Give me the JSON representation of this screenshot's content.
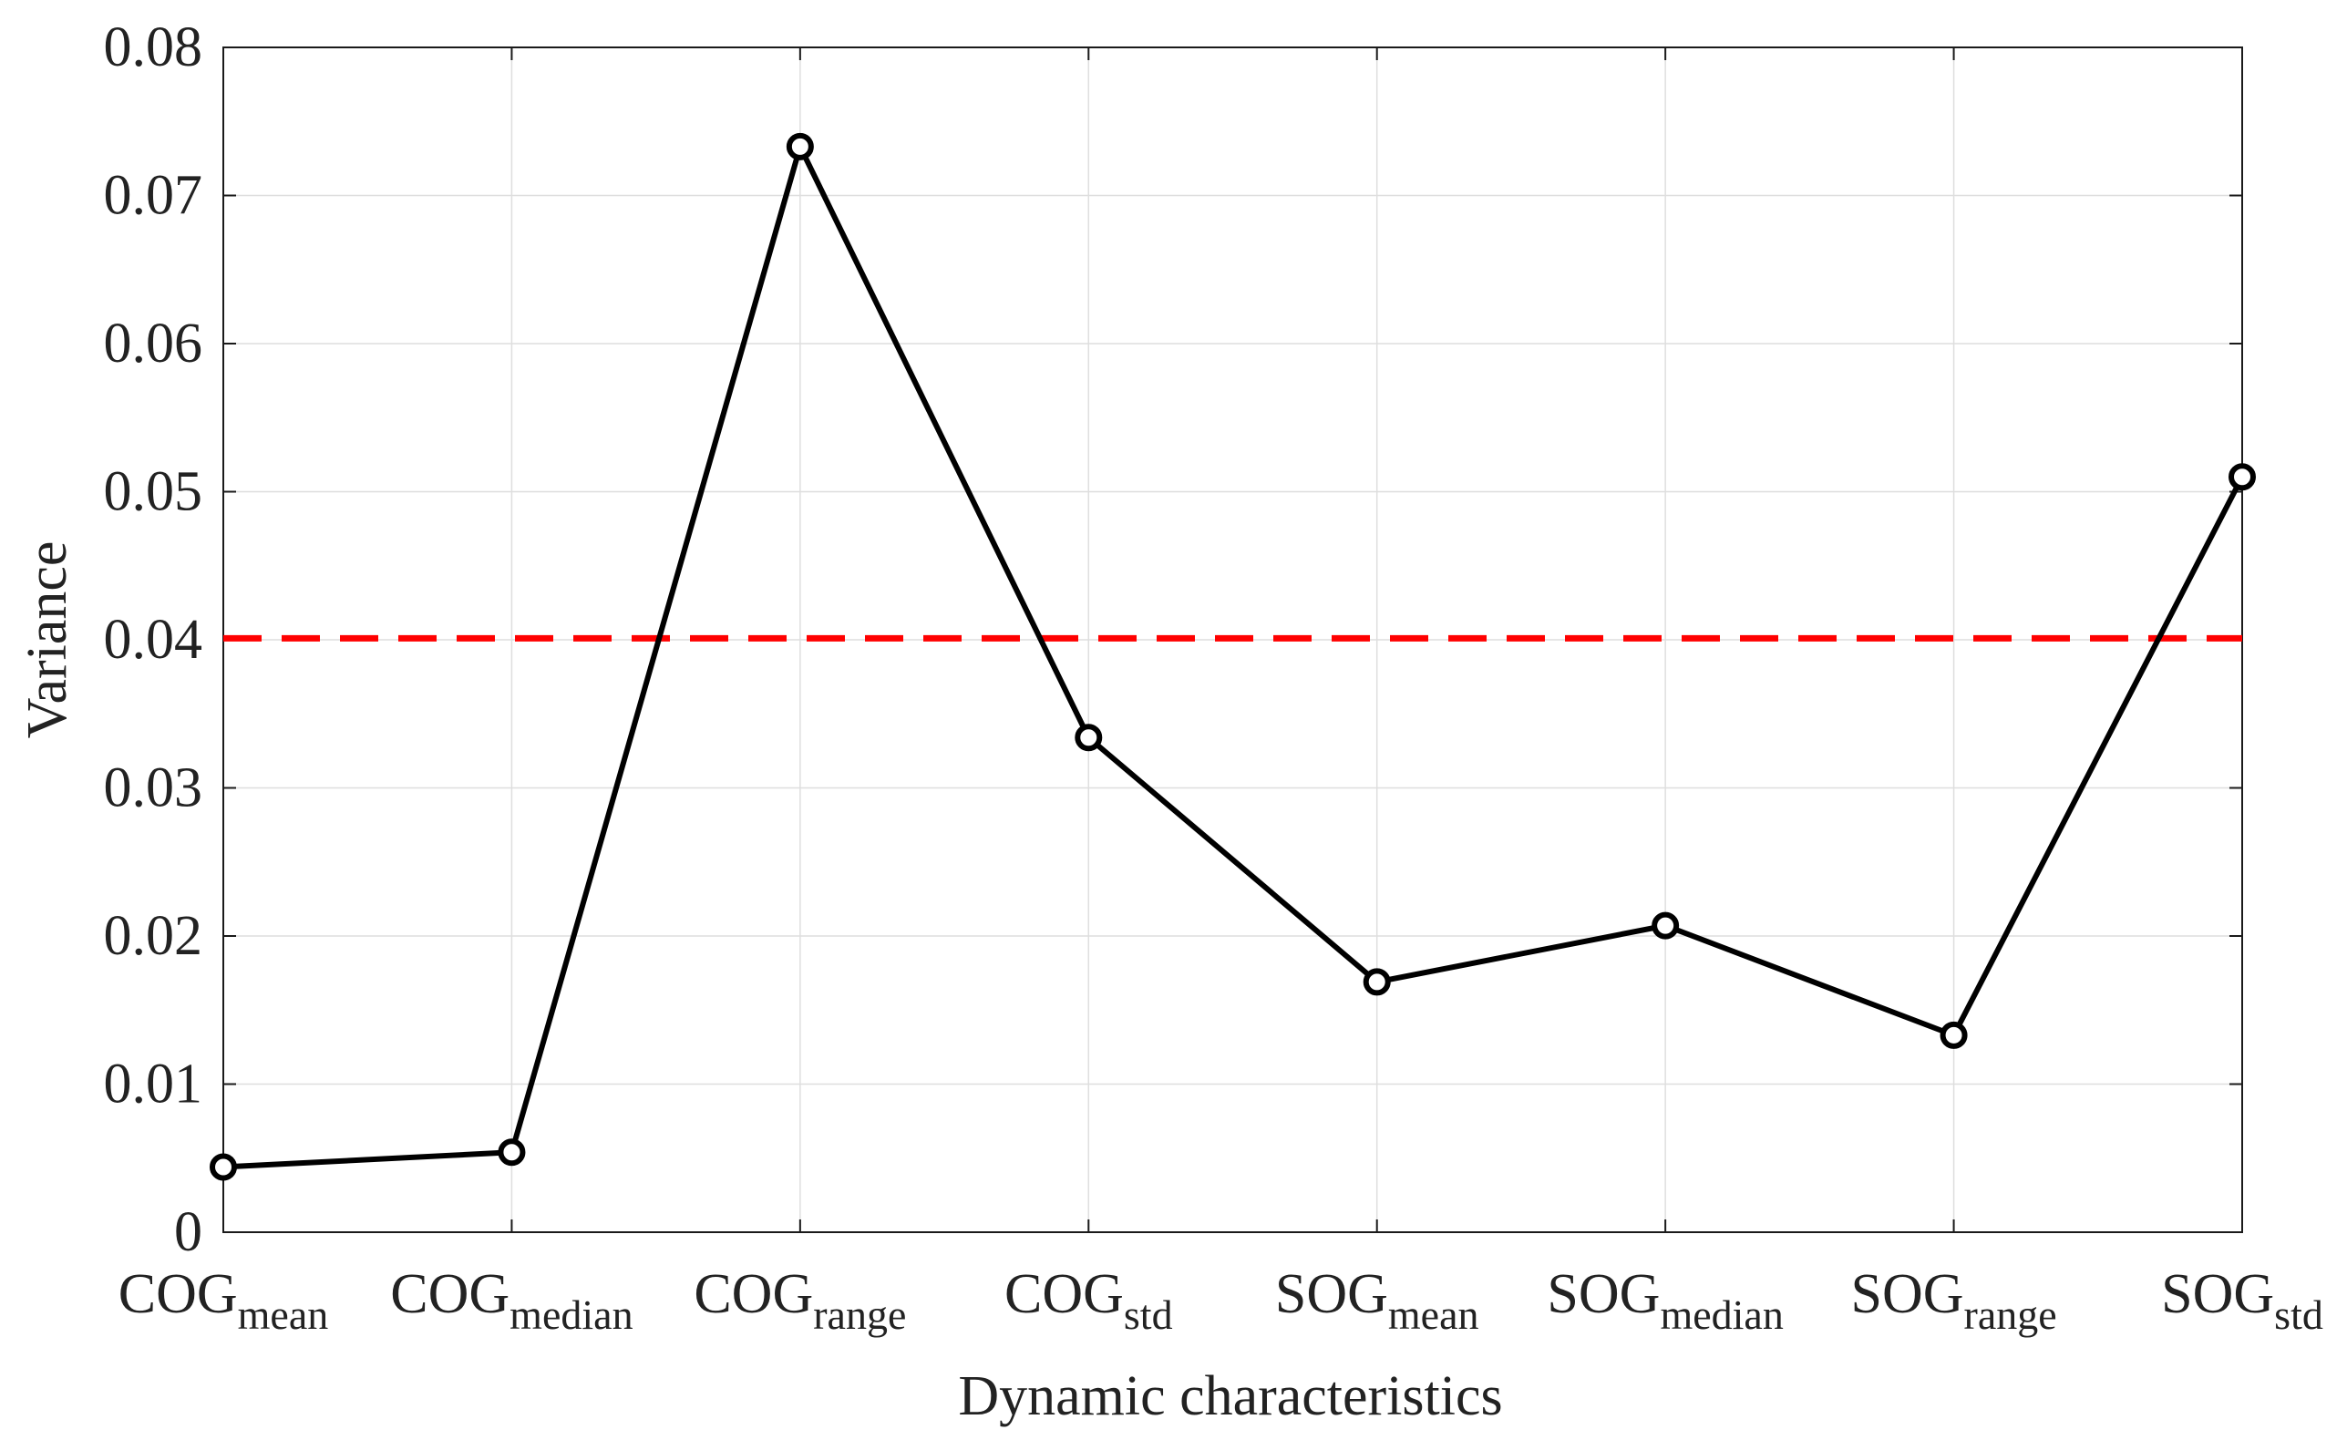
{
  "chart_data": {
    "type": "line",
    "title": "",
    "xlabel": "Dynamic characteristics",
    "ylabel": "Variance",
    "ylim": [
      0,
      0.08
    ],
    "yticks": [
      "0",
      "0.01",
      "0.02",
      "0.03",
      "0.04",
      "0.05",
      "0.06",
      "0.07",
      "0.08"
    ],
    "grid": true,
    "categories": [
      {
        "base": "COG",
        "sub": "mean"
      },
      {
        "base": "COG",
        "sub": "median"
      },
      {
        "base": "COG",
        "sub": "range"
      },
      {
        "base": "COG",
        "sub": "std"
      },
      {
        "base": "SOG",
        "sub": "mean"
      },
      {
        "base": "SOG",
        "sub": "median"
      },
      {
        "base": "SOG",
        "sub": "range"
      },
      {
        "base": "SOG",
        "sub": "std"
      }
    ],
    "series": [
      {
        "name": "Variance",
        "color": "#000000",
        "marker": "circle",
        "values": [
          0.0044,
          0.0054,
          0.0733,
          0.0334,
          0.0169,
          0.0207,
          0.0133,
          0.051
        ]
      }
    ],
    "threshold": {
      "value": 0.0401,
      "color": "#ff0000",
      "style": "dashed"
    }
  }
}
